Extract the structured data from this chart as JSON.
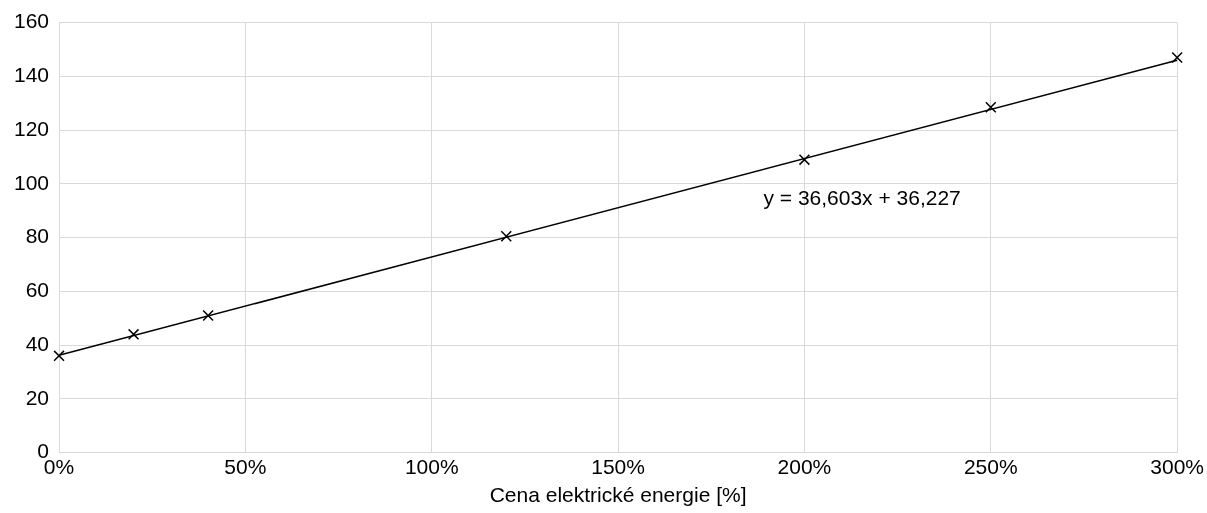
{
  "chart_data": {
    "type": "scatter",
    "xlabel": "Cena elektrické energie [%]",
    "x": [
      0,
      20,
      40,
      120,
      200,
      250,
      300
    ],
    "series": [
      {
        "color": "#000000",
        "marker": "cross",
        "values": [
          36,
          44,
          51,
          80.5,
          109,
          128.5,
          147
        ]
      },
      {
        "type": "line",
        "color": "#000000",
        "marker": "none",
        "x": [
          0,
          300
        ],
        "values": [
          36.2,
          146
        ]
      }
    ],
    "xlim": [
      0,
      300
    ],
    "xticks": [
      {
        "value": 0,
        "label": "0%"
      },
      {
        "value": 50,
        "label": "50%"
      },
      {
        "value": 100,
        "label": "100%"
      },
      {
        "value": 150,
        "label": "150%"
      },
      {
        "value": 200,
        "label": "200%"
      },
      {
        "value": 250,
        "label": "250%"
      },
      {
        "value": 300,
        "label": "300%"
      }
    ],
    "ylim": [
      0,
      160
    ],
    "yticks": [
      0,
      20,
      40,
      60,
      80,
      100,
      120,
      140,
      160
    ],
    "grid": true,
    "legend": false,
    "annotations": [
      "y = 36,603x + 36,227"
    ]
  }
}
